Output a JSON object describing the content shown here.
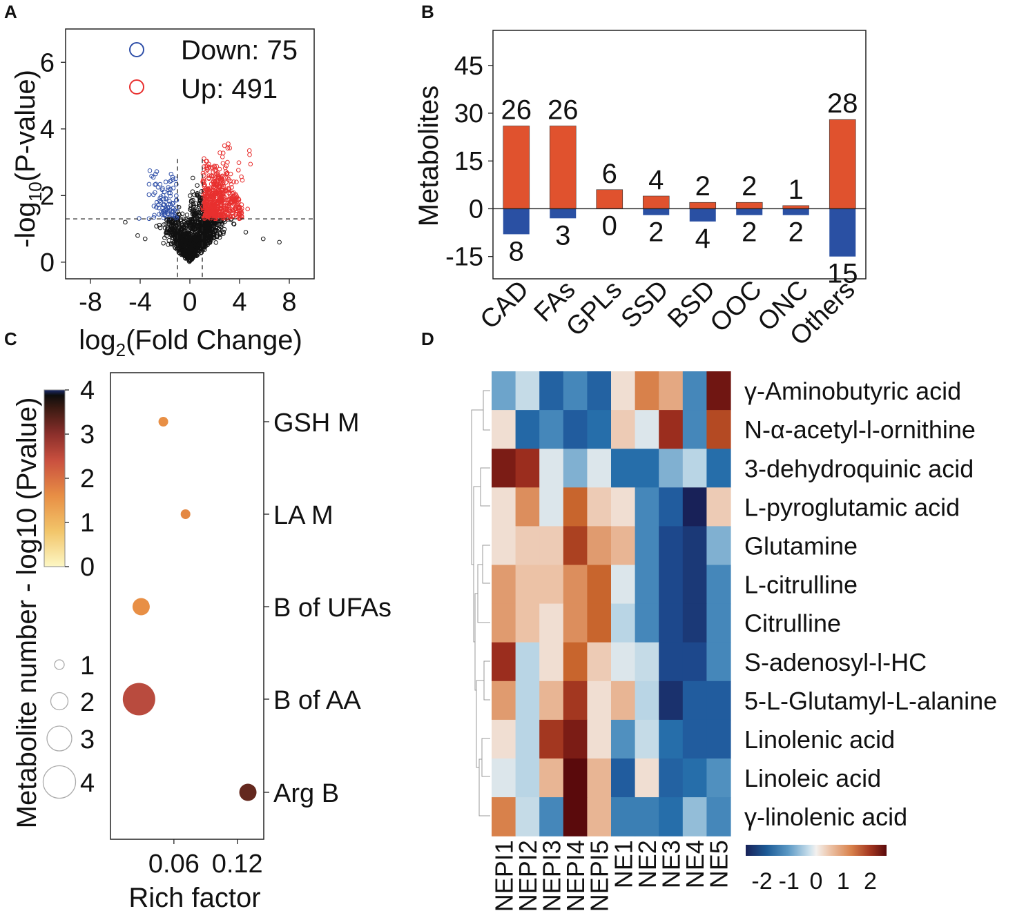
{
  "panels": [
    {
      "id": "A",
      "label": "A"
    },
    {
      "id": "B",
      "label": "B"
    },
    {
      "id": "C",
      "label": "C"
    },
    {
      "id": "D",
      "label": "D"
    }
  ],
  "chart_data": [
    {
      "panel": "A",
      "type": "scatter",
      "xlabel": "log2(Fold Change)",
      "ylabel": "-log10(P-value)",
      "xlim": [
        -10,
        10
      ],
      "ylim": [
        -0.5,
        7
      ],
      "xticks": [
        "-8",
        "-4",
        "0",
        "4",
        "8"
      ],
      "xtick_values": [
        -8,
        -4,
        0,
        4,
        8
      ],
      "yticks": [
        "0",
        "2",
        "4",
        "6"
      ],
      "ytick_values": [
        0,
        2,
        4,
        6
      ],
      "thresholds": {
        "fold_change_log2": [
          -1,
          1
        ],
        "pvalue_log10": 1.3
      },
      "legend": [
        {
          "label": "Down: 75",
          "color": "#2f4fa8"
        },
        {
          "label": "Up: 491",
          "color": "#e8302f"
        }
      ],
      "series": [
        {
          "name": "Down",
          "color": "#2f4fa8",
          "count": 75
        },
        {
          "name": "Up",
          "color": "#e8302f",
          "count": 491
        },
        {
          "name": "Not significant",
          "color": "#111111"
        }
      ],
      "outliers": [
        {
          "x": -5.2,
          "y": 1.2
        },
        {
          "x": -4.2,
          "y": 0.8
        },
        {
          "x": -3.6,
          "y": 0.7
        },
        {
          "x": 5.9,
          "y": 0.7
        },
        {
          "x": 7.2,
          "y": 0.6
        },
        {
          "x": 4.5,
          "y": 0.9
        }
      ]
    },
    {
      "panel": "B",
      "type": "bar",
      "ylabel": "Metabolites",
      "ylim": [
        -22,
        56
      ],
      "yticks": [
        "-15",
        "0",
        "15",
        "30",
        "45"
      ],
      "ytick_values": [
        -15,
        0,
        15,
        30,
        45
      ],
      "categories": [
        "CAD",
        "FAs",
        "GPLs",
        "SSD",
        "BSD",
        "OOC",
        "ONC",
        "Others"
      ],
      "series": [
        {
          "name": "Up",
          "color": "#e0522e",
          "values": [
            26,
            26,
            6,
            4,
            2,
            2,
            1,
            28
          ],
          "labels": [
            "26",
            "26",
            "6",
            "4",
            "2",
            "2",
            "1",
            "28"
          ]
        },
        {
          "name": "Down",
          "color": "#2a50a3",
          "values": [
            8,
            3,
            0,
            2,
            4,
            2,
            2,
            15
          ],
          "labels": [
            "8",
            "3",
            "0",
            "2",
            "4",
            "2",
            "2",
            "15"
          ]
        }
      ]
    },
    {
      "panel": "C",
      "type": "scatter",
      "xlabel": "Rich factor",
      "ylabel": "Metabolite number - log10 (Pvalue)",
      "xlim": [
        0.0,
        0.145
      ],
      "xticks": [
        "0.06",
        "0.12"
      ],
      "xtick_values": [
        0.06,
        0.12
      ],
      "categories": [
        "GSH M",
        "LA M",
        "B of UFAs",
        "B of AA",
        "Arg B"
      ],
      "points": [
        {
          "pathway": "GSH M",
          "rich_factor": 0.05,
          "neg_log10_p": 1.5,
          "count": 1
        },
        {
          "pathway": "LA M",
          "rich_factor": 0.071,
          "neg_log10_p": 1.6,
          "count": 1
        },
        {
          "pathway": "B of UFAs",
          "rich_factor": 0.029,
          "neg_log10_p": 1.5,
          "count": 2
        },
        {
          "pathway": "B of AA",
          "rich_factor": 0.027,
          "neg_log10_p": 2.6,
          "count": 4
        },
        {
          "pathway": "Arg B",
          "rich_factor": 0.13,
          "neg_log10_p": 3.5,
          "count": 2
        }
      ],
      "colorbar": {
        "ticks": [
          "0",
          "1",
          "2",
          "3",
          "4"
        ],
        "range": [
          0,
          4
        ]
      },
      "size_legend": {
        "labels": [
          "1",
          "2",
          "3",
          "4"
        ]
      }
    },
    {
      "panel": "D",
      "type": "heatmap",
      "columns": [
        "NEPI1",
        "NEPI2",
        "NEPI3",
        "NEPI4",
        "NEPI5",
        "NE1",
        "NE2",
        "NE3",
        "NE4",
        "NE5"
      ],
      "rows": [
        "γ-Aminobutyric acid",
        "N-α-acetyl-l-ornithine",
        "3-dehydroquinic acid",
        "L-pyroglutamic acid",
        "Glutamine",
        "L-citrulline",
        "Citrulline",
        "S-adenosyl-l-HC",
        "5-L-Glutamyl-L-alanine",
        "Linolenic acid",
        "Linoleic acid",
        "γ-linolenic acid"
      ],
      "values": [
        [
          -0.9,
          -0.4,
          -1.7,
          -1.2,
          -1.7,
          0.2,
          1.0,
          0.7,
          -1.2,
          2.4
        ],
        [
          0.2,
          -1.6,
          -1.2,
          -1.8,
          -1.5,
          0.4,
          -0.2,
          2.0,
          -1.2,
          1.7
        ],
        [
          2.3,
          2.0,
          -0.2,
          -0.8,
          -0.2,
          -1.5,
          -1.5,
          -0.8,
          -0.5,
          -1.5
        ],
        [
          0.2,
          0.9,
          -0.2,
          1.4,
          0.4,
          0.2,
          -1.2,
          -1.8,
          -2.6,
          0.4
        ],
        [
          0.2,
          0.4,
          0.4,
          1.8,
          0.8,
          0.6,
          -1.2,
          -2.1,
          -2.3,
          -0.8
        ],
        [
          0.8,
          0.5,
          0.5,
          0.9,
          1.4,
          -0.2,
          -1.2,
          -2.1,
          -2.3,
          -1.2
        ],
        [
          0.8,
          0.5,
          0.2,
          0.9,
          1.4,
          -0.5,
          -1.2,
          -2.1,
          -2.3,
          -1.2
        ],
        [
          2.0,
          -0.5,
          0.2,
          1.4,
          0.4,
          -0.2,
          -0.4,
          -2.1,
          -2.1,
          -1.2
        ],
        [
          0.8,
          -0.5,
          0.6,
          1.9,
          0.2,
          0.6,
          -0.5,
          -2.4,
          -1.8,
          -1.8
        ],
        [
          0.2,
          -0.5,
          1.9,
          2.3,
          0.2,
          -1.1,
          -0.4,
          -1.5,
          -1.8,
          -1.8
        ],
        [
          -0.2,
          -0.5,
          0.6,
          2.6,
          0.6,
          -1.8,
          0.2,
          -1.7,
          -1.5,
          -1.1
        ],
        [
          1.0,
          -0.4,
          -1.2,
          2.6,
          0.6,
          -1.3,
          -1.3,
          -1.5,
          -0.7,
          -1.2
        ]
      ],
      "colorbar": {
        "ticks": [
          "-2",
          "-1",
          "0",
          "1",
          "2"
        ],
        "tick_values": [
          -2,
          -1,
          0,
          1,
          2
        ],
        "range": [
          -2.6,
          2.6
        ]
      }
    }
  ]
}
